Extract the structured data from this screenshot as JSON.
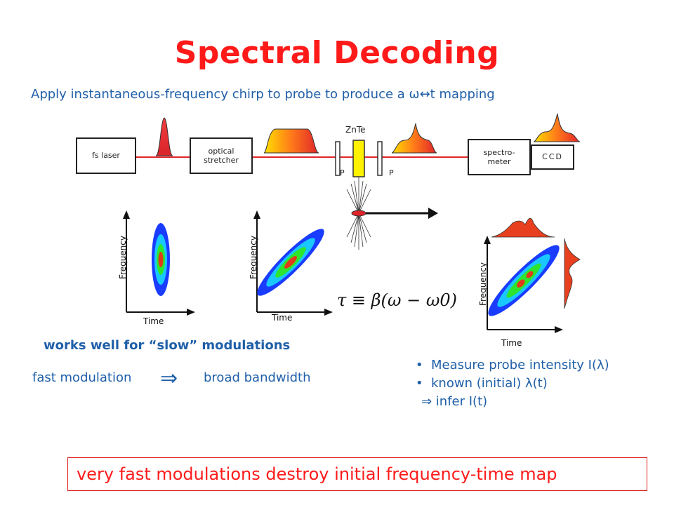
{
  "slide": {
    "title": "Spectral Decoding",
    "subtitle": "Apply instantaneous-frequency chirp to probe to produce a ω↔t mapping",
    "note_slow": "works well for “slow” modulations",
    "fast_left": "fast modulation",
    "fast_arrow": "⇒",
    "fast_right": "broad bandwidth",
    "bullets": [
      "Measure probe intensity I(λ)",
      "known (initial)  λ(t)"
    ],
    "bullet_sub": "⇒  infer I(t)",
    "bottom_banner": "very fast modulations destroy initial frequency-time map"
  },
  "setup": {
    "fs_laser": "fs laser",
    "stretcher_line1": "optical",
    "stretcher_line2": "stretcher",
    "znte": "ZnTe",
    "polarizer_left": "P",
    "polarizer_right": "P",
    "spectro_line1": "spectro-",
    "spectro_line2": "meter",
    "ccd": "CCD"
  },
  "plots": {
    "ylabel": "Frequency",
    "xlabel": "Time",
    "equation": "τ ≡ β(ω − ω0)"
  },
  "colors": {
    "title": "#ff1a1a",
    "text": "#1f5fa8",
    "beam": "#e0242a",
    "banner_border": "#e01b1b"
  }
}
